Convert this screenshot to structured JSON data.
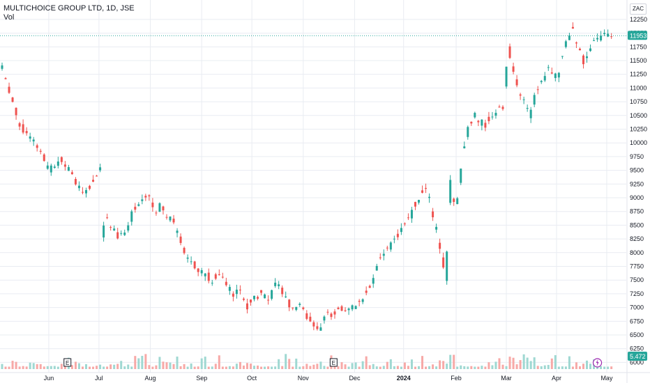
{
  "legend": {
    "title": "MULTICHOICE GROUP LTD, 1D, JSE",
    "volume_label": "Vol"
  },
  "currency": "ZAC",
  "last_price_badge": "11953",
  "volume_badge": "5.472 M",
  "events": [
    {
      "label": "E",
      "date_index": 56
    },
    {
      "label": "E",
      "date_index": 284
    }
  ],
  "colors": {
    "up": "#26a69a",
    "down": "#ef5350",
    "up_vol": "#9fd8d2",
    "down_vol": "#f7a9a7",
    "grid": "#e9ecf2",
    "badge": "#26a69a",
    "text": "#131722",
    "axis": "#b2b5be"
  },
  "chart_data": {
    "type": "candlestick",
    "title": "MULTICHOICE GROUP LTD, 1D, JSE",
    "x_tick_labels": [
      "Jun",
      "Jul",
      "Aug",
      "Sep",
      "Oct",
      "Nov",
      "Dec",
      "2024",
      "Feb",
      "Mar",
      "Apr",
      "May"
    ],
    "x_tick_positions": [
      40,
      83,
      127,
      171,
      214,
      258,
      302,
      344,
      389,
      432,
      475,
      518
    ],
    "y_range": [
      5980,
      12350
    ],
    "y_tick_labels": [
      "12250",
      "12000",
      "11750",
      "11500",
      "11250",
      "11000",
      "10750",
      "10500",
      "10250",
      "10000",
      "9750",
      "9500",
      "9250",
      "9000",
      "8750",
      "8500",
      "8250",
      "8000",
      "7750",
      "7500",
      "7250",
      "7000",
      "6750",
      "6500",
      "6250",
      "6000"
    ],
    "ohlc_anchor_closes": [
      [
        0,
        11350
      ],
      [
        8,
        10800
      ],
      [
        15,
        10300
      ],
      [
        25,
        10050
      ],
      [
        32,
        9850
      ],
      [
        40,
        9500
      ],
      [
        50,
        9700
      ],
      [
        60,
        9400
      ],
      [
        70,
        9100
      ],
      [
        78,
        9300
      ],
      [
        84,
        9600
      ],
      [
        85,
        8100
      ],
      [
        88,
        8700
      ],
      [
        93,
        8450
      ],
      [
        100,
        8300
      ],
      [
        106,
        8400
      ],
      [
        112,
        8750
      ],
      [
        120,
        8950
      ],
      [
        126,
        9000
      ],
      [
        131,
        8700
      ],
      [
        135,
        8850
      ],
      [
        141,
        8650
      ],
      [
        145,
        8600
      ],
      [
        150,
        8400
      ],
      [
        155,
        8100
      ],
      [
        160,
        7800
      ],
      [
        168,
        7700
      ],
      [
        171,
        7650
      ],
      [
        180,
        7500
      ],
      [
        187,
        7600
      ],
      [
        193,
        7400
      ],
      [
        198,
        7250
      ],
      [
        204,
        7300
      ],
      [
        209,
        7000
      ],
      [
        215,
        7200
      ],
      [
        222,
        7250
      ],
      [
        228,
        7100
      ],
      [
        235,
        7500
      ],
      [
        240,
        7250
      ],
      [
        245,
        7100
      ],
      [
        250,
        6900
      ],
      [
        256,
        7100
      ],
      [
        262,
        6800
      ],
      [
        268,
        6700
      ],
      [
        272,
        6500
      ],
      [
        276,
        6900
      ],
      [
        282,
        6850
      ],
      [
        288,
        7000
      ],
      [
        294,
        6950
      ],
      [
        300,
        7000
      ],
      [
        306,
        7050
      ],
      [
        312,
        7300
      ],
      [
        318,
        7500
      ],
      [
        324,
        7900
      ],
      [
        330,
        8100
      ],
      [
        337,
        8250
      ],
      [
        344,
        8500
      ],
      [
        348,
        8600
      ],
      [
        352,
        8800
      ],
      [
        358,
        9050
      ],
      [
        362,
        9200
      ],
      [
        364,
        9150
      ],
      [
        370,
        8600
      ],
      [
        376,
        8000
      ],
      [
        380,
        7500
      ],
      [
        384,
        9350
      ],
      [
        388,
        8700
      ],
      [
        392,
        9300
      ],
      [
        396,
        10000
      ],
      [
        400,
        10300
      ],
      [
        404,
        10500
      ],
      [
        410,
        10400
      ],
      [
        414,
        10300
      ],
      [
        418,
        10500
      ],
      [
        422,
        10550
      ],
      [
        426,
        10700
      ],
      [
        430,
        10600
      ],
      [
        433,
        11850
      ],
      [
        438,
        11250
      ],
      [
        442,
        10900
      ],
      [
        448,
        10700
      ],
      [
        452,
        10500
      ],
      [
        458,
        11000
      ],
      [
        464,
        11100
      ],
      [
        468,
        11400
      ],
      [
        472,
        11250
      ],
      [
        476,
        11150
      ],
      [
        480,
        11650
      ],
      [
        484,
        11850
      ],
      [
        488,
        12100
      ],
      [
        490,
        11950
      ],
      [
        494,
        11750
      ],
      [
        498,
        11500
      ],
      [
        502,
        11650
      ],
      [
        506,
        11800
      ],
      [
        512,
        11950
      ],
      [
        516,
        12050
      ],
      [
        520,
        11950
      ],
      [
        524,
        11953
      ]
    ],
    "volume_unit": "M",
    "last_close": 11953,
    "last_volume": 5.472
  }
}
